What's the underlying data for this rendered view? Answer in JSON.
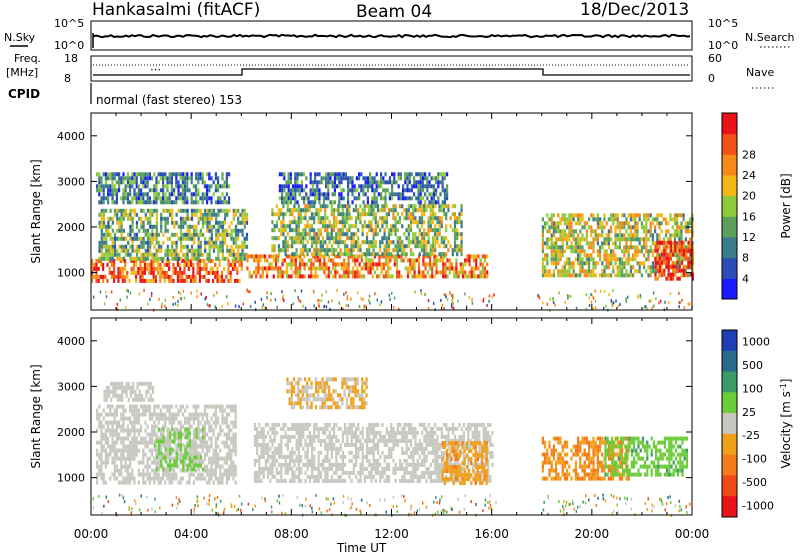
{
  "header": {
    "station": "Hankasalmi (fitACF)",
    "beam": "Beam 04",
    "date": "18/Dec/2013"
  },
  "top_panels": {
    "nsky_label": "N.Sky",
    "nsearch_label": "N.Search",
    "freq_label_1": "Freq.",
    "freq_label_2": "[MHz]",
    "nave_label": "Nave",
    "cpid_label": "CPID",
    "cpid_text": "normal (fast stereo) 153",
    "noise_ticks": [
      "10^5",
      "10^0"
    ],
    "freq_ticks": [
      "18",
      "8"
    ],
    "nave_ticks": [
      "60",
      "0"
    ]
  },
  "chart_data": [
    {
      "type": "heatmap",
      "title": "",
      "xlabel": "Time UT",
      "ylabel": "Slant Range [km]",
      "xlim": [
        0,
        24
      ],
      "ylim": [
        180,
        4500
      ],
      "x_tick_labels": [
        "00:00",
        "04:00",
        "08:00",
        "12:00",
        "16:00",
        "20:00",
        "00:00"
      ],
      "y_ticks": [
        1000,
        2000,
        3000,
        4000
      ],
      "colorbar": {
        "label": "Power [dB]",
        "ticks": [
          4,
          8,
          12,
          16,
          20,
          24,
          28
        ],
        "range": [
          0,
          30
        ],
        "colors": [
          "#1a1aff",
          "#2a4db8",
          "#3a7a8a",
          "#5aa05a",
          "#8ccb3c",
          "#f2b81a",
          "#f58a1a",
          "#f2521a",
          "#e8141a"
        ]
      },
      "echo_regions": [
        {
          "t0": 0.0,
          "t1": 6.0,
          "r0": 800,
          "r1": 1300,
          "value": 24
        },
        {
          "t0": 0.3,
          "t1": 6.2,
          "r0": 1300,
          "r1": 2400,
          "value": 13
        },
        {
          "t0": 0.2,
          "t1": 5.5,
          "r0": 2500,
          "r1": 3200,
          "value": 9
        },
        {
          "t0": 6.2,
          "t1": 15.8,
          "r0": 900,
          "r1": 1400,
          "value": 22
        },
        {
          "t0": 7.2,
          "t1": 14.8,
          "r0": 1400,
          "r1": 2500,
          "value": 14
        },
        {
          "t0": 7.5,
          "t1": 14.2,
          "r0": 2500,
          "r1": 3200,
          "value": 8
        },
        {
          "t0": 18.0,
          "t1": 24.0,
          "r0": 900,
          "r1": 2300,
          "value": 16
        },
        {
          "t0": 22.5,
          "t1": 24.0,
          "r0": 900,
          "r1": 1700,
          "value": 27
        }
      ]
    },
    {
      "type": "heatmap",
      "title": "",
      "xlabel": "Time UT",
      "ylabel": "Slant Range [km]",
      "xlim": [
        0,
        24
      ],
      "ylim": [
        180,
        4500
      ],
      "x_tick_labels": [
        "00:00",
        "04:00",
        "08:00",
        "12:00",
        "16:00",
        "20:00",
        "00:00"
      ],
      "y_ticks": [
        1000,
        2000,
        3000,
        4000
      ],
      "colorbar": {
        "label": "Velocity [m s^-1]",
        "ticks": [
          1000,
          500,
          100,
          25,
          -25,
          -100,
          -500,
          -1000
        ],
        "range": [
          -1200,
          1200
        ],
        "colors": [
          "#1f3fb4",
          "#2a6a8a",
          "#3c9a6a",
          "#6ccd3a",
          "#c8c8c0",
          "#f0a01a",
          "#f57a1a",
          "#f04a1a",
          "#e8141a"
        ]
      },
      "echo_regions": [
        {
          "t0": 0.2,
          "t1": 5.8,
          "r0": 900,
          "r1": 2600,
          "value": 0
        },
        {
          "t0": 2.5,
          "t1": 4.5,
          "r0": 1200,
          "r1": 2100,
          "value": 150
        },
        {
          "t0": 0.5,
          "t1": 2.5,
          "r0": 2700,
          "r1": 3100,
          "value": 0
        },
        {
          "t0": 6.5,
          "t1": 16.0,
          "r0": 900,
          "r1": 2200,
          "value": 0
        },
        {
          "t0": 7.8,
          "t1": 11.0,
          "r0": 2500,
          "r1": 3200,
          "value": -150
        },
        {
          "t0": 14.0,
          "t1": 15.8,
          "r0": 900,
          "r1": 1800,
          "value": -300
        },
        {
          "t0": 18.0,
          "t1": 21.5,
          "r0": 1000,
          "r1": 1900,
          "value": -400
        },
        {
          "t0": 20.5,
          "t1": 23.8,
          "r0": 1100,
          "r1": 1900,
          "value": 300
        }
      ]
    }
  ]
}
